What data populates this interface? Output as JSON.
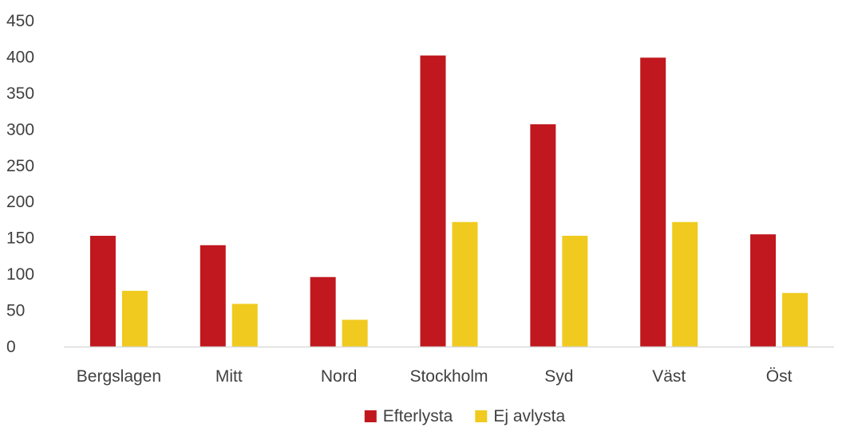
{
  "chart_data": {
    "type": "bar",
    "title": "",
    "xlabel": "",
    "ylabel": "",
    "categories": [
      "Bergslagen",
      "Mitt",
      "Nord",
      "Stockholm",
      "Syd",
      "Väst",
      "Öst"
    ],
    "series": [
      {
        "name": "Efterlysta",
        "color": "#C0181E",
        "values": [
          153,
          140,
          96,
          402,
          307,
          399,
          155
        ]
      },
      {
        "name": "Ej avlysta",
        "color": "#F0CA1E",
        "values": [
          77,
          59,
          37,
          172,
          153,
          172,
          74
        ]
      }
    ],
    "ylim": [
      0,
      450
    ],
    "yticks": [
      0,
      50,
      100,
      150,
      200,
      250,
      300,
      350,
      400,
      450
    ],
    "grid": false,
    "legend": "bottom"
  }
}
